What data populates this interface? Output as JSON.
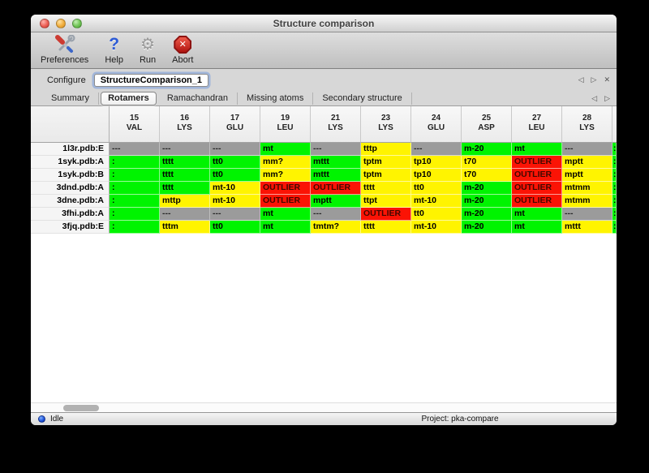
{
  "window": {
    "title": "Structure comparison"
  },
  "toolbar": {
    "items": [
      {
        "label": "Preferences",
        "icon": "tools-icon"
      },
      {
        "label": "Help",
        "icon": "question-icon"
      },
      {
        "label": "Run",
        "icon": "gear-icon"
      },
      {
        "label": "Abort",
        "icon": "stop-icon"
      }
    ]
  },
  "configure": {
    "label": "Configure",
    "value": "StructureComparison_1",
    "nav": {
      "prev": "◁",
      "next": "▷",
      "close": "✕"
    }
  },
  "tabs": {
    "items": [
      {
        "label": "Summary",
        "active": false
      },
      {
        "label": "Rotamers",
        "active": true
      },
      {
        "label": "Ramachandran",
        "active": false
      },
      {
        "label": "Missing atoms",
        "active": false
      },
      {
        "label": "Secondary structure",
        "active": false
      }
    ],
    "nav": {
      "prev": "◁",
      "next": "▷"
    }
  },
  "table": {
    "status_colors": {
      "ok": "#00f400",
      "warn": "#fff400",
      "outlier": "#fb1305",
      "missing": "#9b9b9b"
    },
    "columns": [
      {
        "num": "15",
        "res": "VAL"
      },
      {
        "num": "16",
        "res": "LYS"
      },
      {
        "num": "17",
        "res": "GLU"
      },
      {
        "num": "19",
        "res": "LEU"
      },
      {
        "num": "21",
        "res": "LYS"
      },
      {
        "num": "23",
        "res": "LYS"
      },
      {
        "num": "24",
        "res": "GLU"
      },
      {
        "num": "25",
        "res": "ASP"
      },
      {
        "num": "27",
        "res": "LEU"
      },
      {
        "num": "28",
        "res": "LYS"
      }
    ],
    "rows": [
      {
        "label": "1l3r.pdb:E",
        "cells": [
          {
            "text": "---",
            "status": "missing"
          },
          {
            "text": "---",
            "status": "missing"
          },
          {
            "text": "---",
            "status": "missing"
          },
          {
            "text": "mt",
            "status": "ok"
          },
          {
            "text": "---",
            "status": "missing"
          },
          {
            "text": "tttp",
            "status": "warn"
          },
          {
            "text": "---",
            "status": "missing"
          },
          {
            "text": "m-20",
            "status": "ok"
          },
          {
            "text": "mt",
            "status": "ok"
          },
          {
            "text": "---",
            "status": "missing"
          },
          {
            "text": ":",
            "status": "ok"
          }
        ]
      },
      {
        "label": "1syk.pdb:A",
        "cells": [
          {
            "text": ":",
            "status": "ok"
          },
          {
            "text": "tttt",
            "status": "ok"
          },
          {
            "text": "tt0",
            "status": "ok"
          },
          {
            "text": "mm?",
            "status": "warn"
          },
          {
            "text": "mttt",
            "status": "ok"
          },
          {
            "text": "tptm",
            "status": "warn"
          },
          {
            "text": "tp10",
            "status": "warn"
          },
          {
            "text": "t70",
            "status": "warn"
          },
          {
            "text": "OUTLIER",
            "status": "outlier"
          },
          {
            "text": "mptt",
            "status": "warn"
          },
          {
            "text": ":",
            "status": "ok"
          }
        ]
      },
      {
        "label": "1syk.pdb:B",
        "cells": [
          {
            "text": ":",
            "status": "ok"
          },
          {
            "text": "tttt",
            "status": "ok"
          },
          {
            "text": "tt0",
            "status": "ok"
          },
          {
            "text": "mm?",
            "status": "warn"
          },
          {
            "text": "mttt",
            "status": "ok"
          },
          {
            "text": "tptm",
            "status": "warn"
          },
          {
            "text": "tp10",
            "status": "warn"
          },
          {
            "text": "t70",
            "status": "warn"
          },
          {
            "text": "OUTLIER",
            "status": "outlier"
          },
          {
            "text": "mptt",
            "status": "warn"
          },
          {
            "text": ":",
            "status": "ok"
          }
        ]
      },
      {
        "label": "3dnd.pdb:A",
        "cells": [
          {
            "text": ":",
            "status": "ok"
          },
          {
            "text": "tttt",
            "status": "ok"
          },
          {
            "text": "mt-10",
            "status": "warn"
          },
          {
            "text": "OUTLIER",
            "status": "outlier"
          },
          {
            "text": "OUTLIER",
            "status": "outlier"
          },
          {
            "text": "tttt",
            "status": "warn"
          },
          {
            "text": "tt0",
            "status": "warn"
          },
          {
            "text": "m-20",
            "status": "ok"
          },
          {
            "text": "OUTLIER",
            "status": "outlier"
          },
          {
            "text": "mtmm",
            "status": "warn"
          },
          {
            "text": ":",
            "status": "ok"
          }
        ]
      },
      {
        "label": "3dne.pdb:A",
        "cells": [
          {
            "text": ":",
            "status": "ok"
          },
          {
            "text": "mttp",
            "status": "warn"
          },
          {
            "text": "mt-10",
            "status": "warn"
          },
          {
            "text": "OUTLIER",
            "status": "outlier"
          },
          {
            "text": "mptt",
            "status": "ok"
          },
          {
            "text": "ttpt",
            "status": "warn"
          },
          {
            "text": "mt-10",
            "status": "warn"
          },
          {
            "text": "m-20",
            "status": "ok"
          },
          {
            "text": "OUTLIER",
            "status": "outlier"
          },
          {
            "text": "mtmm",
            "status": "warn"
          },
          {
            "text": ":",
            "status": "ok"
          }
        ]
      },
      {
        "label": "3fhi.pdb:A",
        "cells": [
          {
            "text": ":",
            "status": "ok"
          },
          {
            "text": "---",
            "status": "missing"
          },
          {
            "text": "---",
            "status": "missing"
          },
          {
            "text": "mt",
            "status": "ok"
          },
          {
            "text": "---",
            "status": "missing"
          },
          {
            "text": "OUTLIER",
            "status": "outlier"
          },
          {
            "text": "tt0",
            "status": "warn"
          },
          {
            "text": "m-20",
            "status": "ok"
          },
          {
            "text": "mt",
            "status": "ok"
          },
          {
            "text": "---",
            "status": "missing"
          },
          {
            "text": ":",
            "status": "ok"
          }
        ]
      },
      {
        "label": "3fjq.pdb:E",
        "cells": [
          {
            "text": ":",
            "status": "ok"
          },
          {
            "text": "tttm",
            "status": "warn"
          },
          {
            "text": "tt0",
            "status": "ok"
          },
          {
            "text": "mt",
            "status": "ok"
          },
          {
            "text": "tmtm?",
            "status": "warn"
          },
          {
            "text": "tttt",
            "status": "warn"
          },
          {
            "text": "mt-10",
            "status": "warn"
          },
          {
            "text": "m-20",
            "status": "ok"
          },
          {
            "text": "mt",
            "status": "ok"
          },
          {
            "text": "mttt",
            "status": "warn"
          },
          {
            "text": ":",
            "status": "ok"
          }
        ]
      }
    ]
  },
  "statusbar": {
    "status": "Idle",
    "project": "Project: pka-compare"
  }
}
